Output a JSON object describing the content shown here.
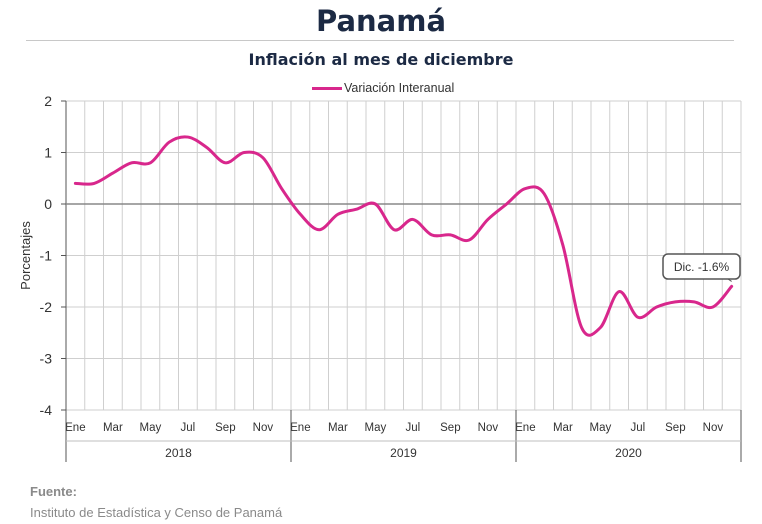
{
  "header": {
    "title": "Panamá",
    "subtitle": "Inflación al mes de diciembre"
  },
  "footer": {
    "source_label": "Fuente:",
    "source_text": "Instituto de Estadística y Censo de Panamá"
  },
  "chart_data": {
    "type": "line",
    "title": "Inflación al mes de diciembre",
    "ylabel": "Porcentajes",
    "xlabel": "",
    "ylim": [
      -4,
      2
    ],
    "yticks": [
      2,
      1,
      0,
      -1,
      -2,
      -3,
      -4
    ],
    "grid": true,
    "legend_position": "top-center",
    "month_tick_labels": [
      "Ene",
      "Mar",
      "May",
      "Jul",
      "Sep",
      "Nov"
    ],
    "years": [
      "2018",
      "2019",
      "2020"
    ],
    "series": [
      {
        "name": "Variación Interanual",
        "color": "#d8278c",
        "values": [
          0.4,
          0.4,
          0.6,
          0.8,
          0.8,
          1.2,
          1.3,
          1.1,
          0.8,
          1.0,
          0.9,
          0.3,
          -0.2,
          -0.5,
          -0.2,
          -0.1,
          0.0,
          -0.5,
          -0.3,
          -0.6,
          -0.6,
          -0.7,
          -0.3,
          0.0,
          0.3,
          0.2,
          -0.8,
          -2.4,
          -2.4,
          -1.7,
          -2.2,
          -2.0,
          -1.9,
          -1.9,
          -2.0,
          -1.6
        ]
      }
    ],
    "annotation": {
      "text": "Dic. -1.6%",
      "color": "#555555"
    },
    "zero_line_color": "#888888"
  }
}
